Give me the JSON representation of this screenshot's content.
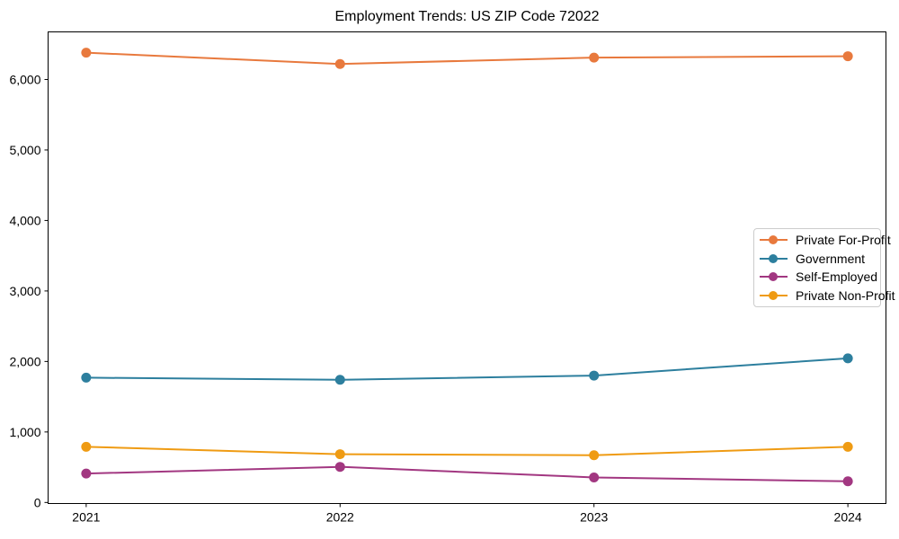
{
  "chart_data": {
    "type": "line",
    "title": "Employment Trends: US ZIP Code 72022",
    "categories": [
      "2021",
      "2022",
      "2023",
      "2024"
    ],
    "series": [
      {
        "name": "Private For-Profit",
        "color": "#e8793d",
        "values": [
          6380,
          6220,
          6310,
          6330
        ]
      },
      {
        "name": "Government",
        "color": "#2d7f9e",
        "values": [
          1770,
          1740,
          1800,
          2045
        ]
      },
      {
        "name": "Self-Employed",
        "color": "#a23781",
        "values": [
          410,
          505,
          355,
          300
        ]
      },
      {
        "name": "Private Non-Profit",
        "color": "#ef9b13",
        "values": [
          790,
          685,
          670,
          790
        ]
      }
    ],
    "xlabel": "",
    "ylabel": "",
    "xlim": [
      2020.85,
      2024.15
    ],
    "ylim": [
      -15,
      6675
    ],
    "yticks": [
      0,
      1000,
      2000,
      3000,
      4000,
      5000,
      6000
    ],
    "ytick_labels": [
      "0",
      "1,000",
      "2,000",
      "3,000",
      "4,000",
      "5,000",
      "6,000"
    ],
    "grid": false,
    "axes_box": true,
    "legend_position": "middle-right",
    "marker": "circle",
    "text_color": "#000000",
    "spine_color": "#000000"
  }
}
